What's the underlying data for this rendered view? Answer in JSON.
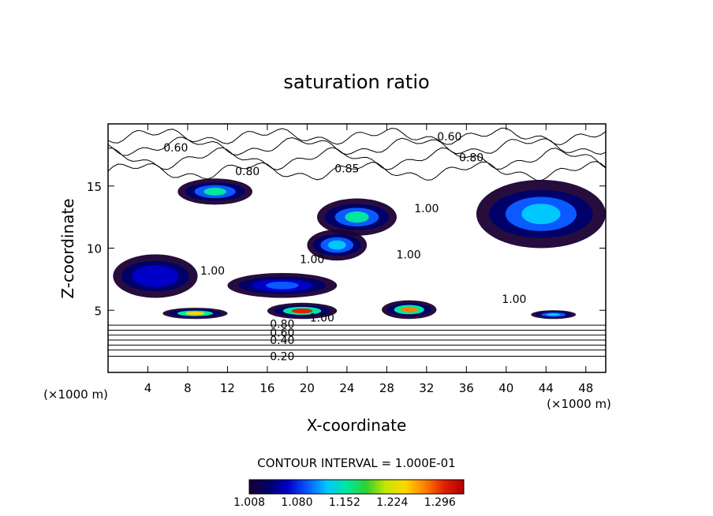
{
  "chart_data": {
    "type": "heatmap",
    "title": "saturation ratio",
    "xlabel": "X-coordinate",
    "ylabel": "Z-coordinate",
    "x_unit": "(×1000 m)",
    "z_unit": "(×1000 m)",
    "xlim": [
      0,
      50
    ],
    "ylim": [
      0,
      20
    ],
    "x_ticks": [
      4,
      8,
      12,
      16,
      20,
      24,
      28,
      32,
      36,
      40,
      44,
      48
    ],
    "y_ticks": [
      5,
      10,
      15
    ],
    "contour_interval_label": "CONTOUR INTERVAL = 1.000E-01",
    "contour_labels": [
      {
        "text": "0.60",
        "x": 6.8,
        "z": 18.1
      },
      {
        "text": "0.60",
        "x": 34.3,
        "z": 19.0
      },
      {
        "text": "0.80",
        "x": 14.0,
        "z": 16.2
      },
      {
        "text": "0.80",
        "x": 36.5,
        "z": 17.3
      },
      {
        "text": "0.85",
        "x": 24.0,
        "z": 16.4
      },
      {
        "text": "1.00",
        "x": 32.0,
        "z": 13.2
      },
      {
        "text": "1.00",
        "x": 20.5,
        "z": 9.1
      },
      {
        "text": "1.00",
        "x": 30.2,
        "z": 9.5
      },
      {
        "text": "1.00",
        "x": 10.5,
        "z": 8.2
      },
      {
        "text": "1.00",
        "x": 40.8,
        "z": 5.9
      },
      {
        "text": "1.00",
        "x": 21.5,
        "z": 4.4
      },
      {
        "text": "0.80",
        "x": 17.5,
        "z": 3.9
      },
      {
        "text": "0.60",
        "x": 17.5,
        "z": 3.2
      },
      {
        "text": "0.40",
        "x": 17.5,
        "z": 2.6
      },
      {
        "text": "0.20",
        "x": 17.5,
        "z": 1.3
      }
    ],
    "colorbar": {
      "ticks": [
        "1.008",
        "1.080",
        "1.152",
        "1.224",
        "1.296"
      ],
      "range": [
        1.008,
        1.332
      ],
      "colors": [
        "#1a0033",
        "#00006a",
        "#0000c8",
        "#0a5aff",
        "#00c8ff",
        "#00e6a0",
        "#30d030",
        "#c8e600",
        "#ffd800",
        "#ff8000",
        "#e02000",
        "#b00000"
      ]
    },
    "supersaturated_regions": [
      {
        "x": [
          5.5,
          12.0
        ],
        "z": [
          4.3,
          5.2
        ],
        "peak": 1.25
      },
      {
        "x": [
          16.0,
          23.0
        ],
        "z": [
          4.3,
          5.6
        ],
        "peak": 1.28
      },
      {
        "x": [
          27.5,
          33.0
        ],
        "z": [
          4.3,
          5.8
        ],
        "peak": 1.26
      },
      {
        "x": [
          42.5,
          47.0
        ],
        "z": [
          4.3,
          5.0
        ],
        "peak": 1.12
      },
      {
        "x": [
          7.0,
          14.5
        ],
        "z": [
          13.5,
          15.6
        ],
        "peak": 1.16
      },
      {
        "x": [
          21.0,
          29.0
        ],
        "z": [
          11.0,
          14.0
        ],
        "peak": 1.15
      },
      {
        "x": [
          37.0,
          50.0
        ],
        "z": [
          10.0,
          15.5
        ],
        "peak": 1.12
      },
      {
        "x": [
          20.0,
          26.0
        ],
        "z": [
          9.0,
          11.5
        ],
        "peak": 1.12
      },
      {
        "x": [
          12.0,
          23.0
        ],
        "z": [
          6.0,
          8.0
        ],
        "peak": 1.1
      },
      {
        "x": [
          0.5,
          9.0
        ],
        "z": [
          6.0,
          9.5
        ],
        "peak": 1.08
      }
    ]
  }
}
